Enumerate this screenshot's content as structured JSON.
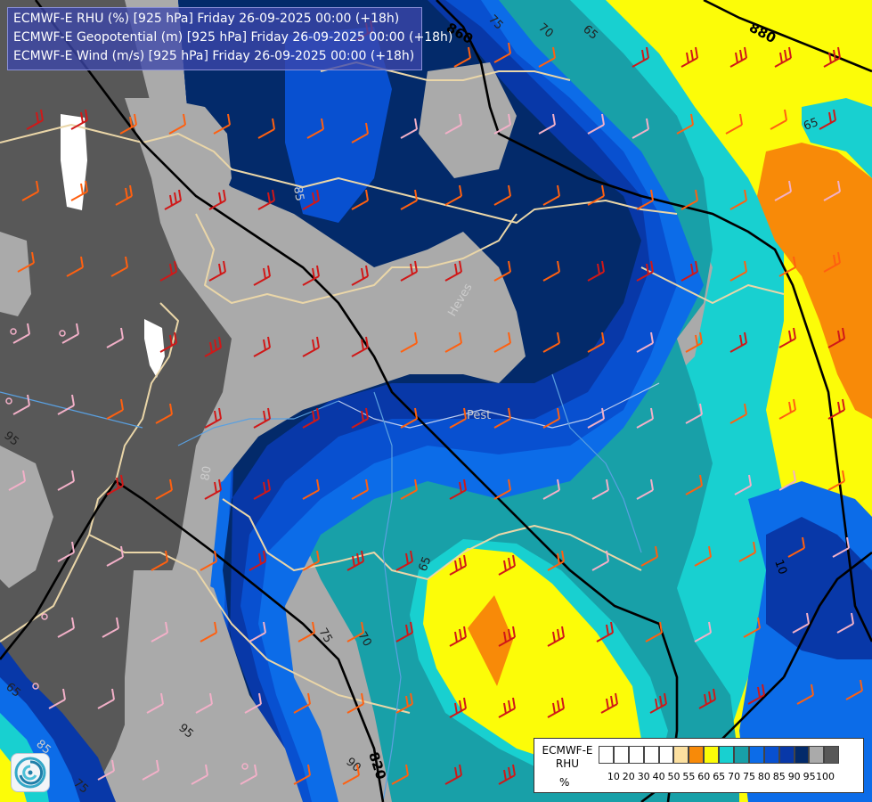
{
  "header": {
    "lines": [
      "ECMWF-E RHU (%) [925 hPa] Friday 26-09-2025 00:00 (+18h)",
      "ECMWF-E Geopotential (m) [925 hPa] Friday 26-09-2025 00:00 (+18h)",
      "ECMWF-E Wind (m/s) [925 hPa] Friday 26-09-2025 00:00 (+18h)"
    ]
  },
  "legend": {
    "title_line1": "ECMWF-E",
    "title_line2": "RHU",
    "unit": "%",
    "colors": [
      "#ffffff",
      "#ffffff",
      "#ffffff",
      "#ffffff",
      "#ffffff",
      "#fce0a0",
      "#f88a08",
      "#fcfc08",
      "#18d0d0",
      "#18a0a8",
      "#0c6ce8",
      "#0850d0",
      "#0838a8",
      "#032a6a",
      "#aaaaaa",
      "#585858"
    ],
    "tick_labels": [
      "10",
      "20",
      "30",
      "40",
      "50",
      "55",
      "60",
      "65",
      "70",
      "75",
      "80",
      "85",
      "90",
      "95",
      "100"
    ]
  },
  "contour_labels": {
    "geopotential": [
      "860",
      "880",
      "820",
      "10"
    ],
    "rhu": [
      "75",
      "70",
      "65",
      "65",
      "85",
      "65",
      "70",
      "75",
      "95",
      "95",
      "65",
      "85",
      "75",
      "90",
      "80"
    ]
  },
  "place_labels": [
    "Pest",
    "Heves"
  ],
  "colors": {
    "rhu_100": "#585858",
    "rhu_95": "#aaaaaa",
    "rhu_90": "#032a6a",
    "rhu_85": "#0838a8",
    "rhu_80": "#0850d0",
    "rhu_75": "#0c6ce8",
    "rhu_70": "#18a0a8",
    "rhu_65": "#18d0d0",
    "rhu_60": "#fcfc08",
    "rhu_55": "#f88a08",
    "border": "#ead6a8",
    "river": "#5aa0e0",
    "contour": "#000000"
  },
  "logo": {
    "icon": "ecmwf-swirl-icon"
  }
}
